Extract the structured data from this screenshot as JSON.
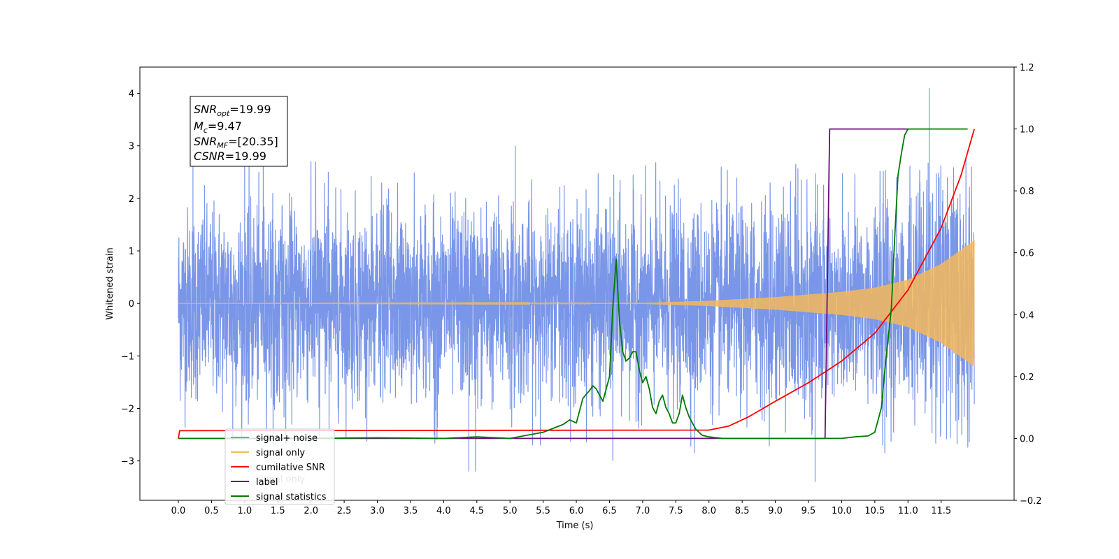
{
  "chart_data": {
    "type": "line",
    "xlabel": "Time (s)",
    "ylabel_left": "Whitened strain",
    "ylabel_right": "",
    "xlim": [
      -0.58,
      12.6
    ],
    "ylim_left": [
      -3.75,
      4.5
    ],
    "ylim_right": [
      -0.2,
      1.2
    ],
    "x_ticks": [
      "0.0",
      "0.5",
      "1.0",
      "1.5",
      "2.0",
      "2.5",
      "3.0",
      "3.5",
      "4.0",
      "4.5",
      "5.0",
      "5.5",
      "6.0",
      "6.5",
      "7.0",
      "7.5",
      "8.0",
      "8.5",
      "9.0",
      "9.5",
      "10.0",
      "10.5",
      "11.0",
      "11.5"
    ],
    "y_ticks_left": [
      "4",
      "3",
      "2",
      "1",
      "0",
      "−1",
      "−2",
      "−3"
    ],
    "y_ticks_right": [
      "1.2",
      "1.0",
      "0.8",
      "0.6",
      "0.4",
      "0.2",
      "0.0",
      "−0.2"
    ],
    "annotation": {
      "lines": [
        {
          "main": "SNR",
          "sub": "opt",
          "rest": "=19.99"
        },
        {
          "main": "M",
          "sub": "c",
          "rest": "=9.47"
        },
        {
          "main": "SNR",
          "sub": "MF",
          "rest": "=[20.35]"
        },
        {
          "main": "CSNR",
          "sub": "",
          "rest": "=19.99"
        }
      ]
    },
    "legend": {
      "placement": "lower-left",
      "entries": [
        "signal+ noise",
        "signal only",
        "cumilative SNR",
        "label",
        "signal statistics"
      ],
      "ghost_text": "signal only"
    },
    "series": [
      {
        "name": "signal+ noise",
        "axis": "left",
        "color": "#7a96e8",
        "kind": "noise",
        "x_range": [
          0.0,
          12.0
        ],
        "envelope_x": [
          0,
          2,
          4,
          6,
          8,
          9,
          10,
          10.5,
          11,
          11.5,
          12
        ],
        "envelope": [
          1.45,
          1.45,
          1.45,
          1.45,
          1.46,
          1.48,
          1.55,
          1.62,
          1.72,
          1.95,
          2.05
        ],
        "spikes": [
          [
            0.22,
            2.7
          ],
          [
            1.0,
            2.9
          ],
          [
            1.28,
            2.75
          ],
          [
            5.08,
            3.0
          ],
          [
            6.55,
            -3.0
          ],
          [
            9.6,
            -3.4
          ],
          [
            11.32,
            4.1
          ],
          [
            11.47,
            2.4
          ],
          [
            4.38,
            -3.2
          ],
          [
            4.48,
            -3.2
          ],
          [
            0.82,
            -2.6
          ],
          [
            7.78,
            -2.85
          ],
          [
            10.65,
            -2.85
          ]
        ]
      },
      {
        "name": "signal only",
        "axis": "left",
        "color": "#f5b85a",
        "kind": "chirp",
        "x_range": [
          0.0,
          12.0
        ],
        "amp_x": [
          0,
          7,
          8,
          9,
          10,
          10.5,
          11,
          11.5,
          12
        ],
        "amp": [
          0.0,
          0.01,
          0.05,
          0.12,
          0.22,
          0.3,
          0.45,
          0.75,
          1.2
        ]
      },
      {
        "name": "cumilative SNR",
        "axis": "right",
        "color": "#ff0000",
        "x": [
          0.0,
          0.02,
          8.0,
          8.3,
          8.6,
          9.0,
          9.5,
          10.0,
          10.5,
          11.0,
          11.5,
          11.8,
          12.0
        ],
        "y": [
          0.0,
          0.025,
          0.027,
          0.04,
          0.07,
          0.12,
          0.18,
          0.25,
          0.34,
          0.48,
          0.68,
          0.85,
          1.0
        ]
      },
      {
        "name": "label",
        "axis": "right",
        "color": "#6a0d7a",
        "x": [
          0.0,
          9.75,
          9.82,
          11.0
        ],
        "y": [
          0.0,
          0.0,
          1.0,
          1.0
        ]
      },
      {
        "name": "signal statistics",
        "axis": "right",
        "color": "#007a00",
        "x": [
          0.0,
          2.0,
          3.0,
          4.0,
          4.5,
          5.0,
          5.2,
          5.5,
          5.8,
          5.9,
          6.0,
          6.1,
          6.2,
          6.25,
          6.3,
          6.4,
          6.5,
          6.55,
          6.6,
          6.65,
          6.7,
          6.75,
          6.8,
          6.85,
          6.9,
          6.95,
          7.0,
          7.05,
          7.1,
          7.15,
          7.2,
          7.25,
          7.3,
          7.35,
          7.4,
          7.45,
          7.5,
          7.55,
          7.6,
          7.65,
          7.7,
          7.75,
          7.8,
          7.9,
          8.0,
          8.2,
          8.5,
          9.0,
          10.0,
          10.2,
          10.4,
          10.5,
          10.55,
          10.6,
          10.65,
          10.7,
          10.75,
          10.8,
          10.85,
          10.9,
          10.95,
          11.0,
          11.5,
          11.8,
          11.9
        ],
        "y": [
          0.0,
          0.0,
          0.002,
          0.0,
          0.005,
          0.0,
          0.008,
          0.02,
          0.045,
          0.06,
          0.05,
          0.13,
          0.155,
          0.17,
          0.16,
          0.12,
          0.2,
          0.42,
          0.58,
          0.38,
          0.28,
          0.25,
          0.26,
          0.28,
          0.28,
          0.22,
          0.18,
          0.2,
          0.16,
          0.1,
          0.08,
          0.12,
          0.14,
          0.1,
          0.08,
          0.05,
          0.05,
          0.08,
          0.14,
          0.1,
          0.07,
          0.05,
          0.03,
          0.01,
          0.005,
          0.0,
          0.0,
          0.0,
          0.0,
          0.005,
          0.008,
          0.02,
          0.06,
          0.1,
          0.22,
          0.32,
          0.42,
          0.65,
          0.85,
          0.92,
          0.98,
          1.0,
          1.0,
          1.0,
          1.0
        ]
      }
    ]
  }
}
